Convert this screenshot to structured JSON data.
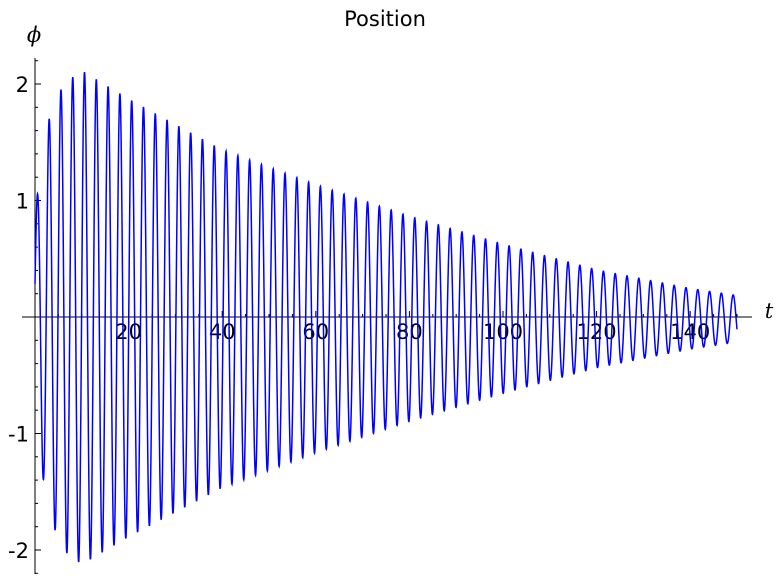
{
  "chart_data": {
    "type": "line",
    "title": "Position",
    "xlabel": "t",
    "ylabel": "ϕ",
    "xlim": [
      0,
      150
    ],
    "ylim": [
      -2.2,
      2.2
    ],
    "x_ticks": [
      20,
      40,
      60,
      80,
      100,
      120,
      140
    ],
    "y_ticks": [
      2,
      1,
      -1,
      -2
    ],
    "x_tick_labels": [
      "20",
      "40",
      "60",
      "80",
      "100",
      "120",
      "140"
    ],
    "y_tick_labels": [
      "2",
      "1",
      "-1",
      "-2"
    ],
    "grid": false,
    "series": [
      {
        "color": "#0000ff",
        "samples": 60,
        "period": 2.52,
        "values": {
          "t": [
            0,
            1,
            3,
            6,
            10,
            20,
            40,
            60,
            80,
            100,
            120,
            140,
            150
          ],
          "envelope": [
            0.9,
            1.2,
            1.7,
            2.0,
            2.12,
            1.88,
            1.45,
            1.15,
            0.88,
            0.64,
            0.42,
            0.26,
            0.2
          ]
        }
      }
    ]
  }
}
